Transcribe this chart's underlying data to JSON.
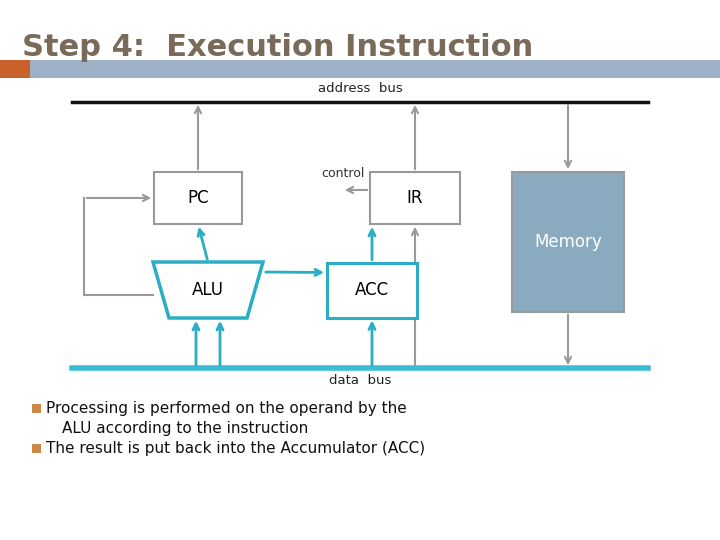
{
  "title": "Step 4:  Execution Instruction",
  "title_color": "#7a6a5a",
  "title_fontsize": 22,
  "bg_color": "#ffffff",
  "header_bar_color": "#9eb0c5",
  "header_bar_orange": "#c8622a",
  "address_bus_color": "#111111",
  "data_bus_color": "#3bbdd4",
  "blue_stroke": "#29aec4",
  "gray_stroke": "#999999",
  "memory_fill": "#8aaabf",
  "bullet_color": "#cc8844",
  "text1a": "Processing is performed on the operand by the",
  "text1b": "ALU according to the instruction",
  "text2": "The result is put back into the Accumulator (ACC)",
  "addr_label": "address  bus",
  "data_label": "data  bus",
  "control_label": "control"
}
